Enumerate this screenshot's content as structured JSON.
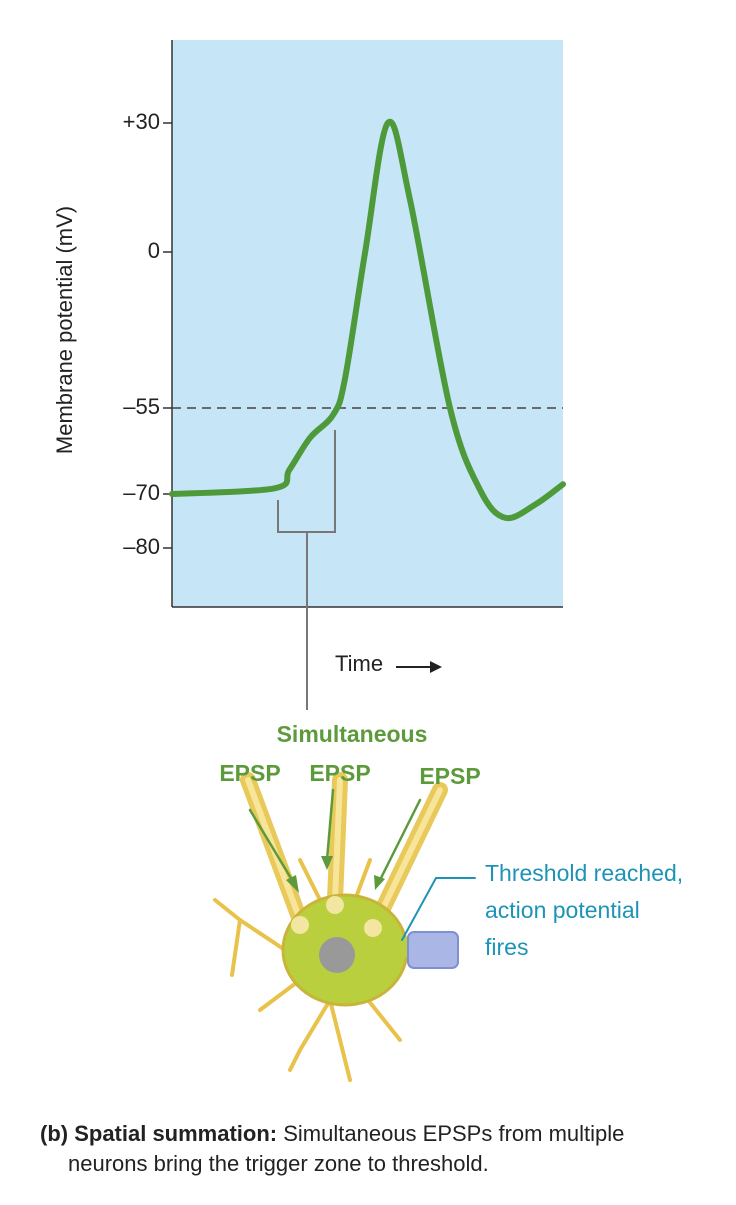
{
  "chart_data": {
    "type": "line",
    "ylabel": "Membrane potential (mV)",
    "xlabel": "Time",
    "x": [
      0,
      26.3,
      30,
      35.3,
      41.2,
      44.2,
      49.4,
      55.2,
      60.9,
      71.1,
      78.8,
      85.2,
      92.8,
      100
    ],
    "values": [
      -70,
      -69,
      -65.8,
      -60.2,
      -56.2,
      -45,
      0,
      30,
      12,
      -55,
      -69.3,
      -74.4,
      -72,
      -68.3
    ],
    "color": "#4e9a3a",
    "background": "#c6e6f7",
    "xlim": [
      0,
      100
    ],
    "ylim": [
      -91,
      49
    ],
    "yticks": [
      {
        "value": 30,
        "label": "+30"
      },
      0,
      {
        "value": -55,
        "label": "–55"
      },
      {
        "value": -70,
        "label": "–70"
      },
      {
        "value": -80,
        "label": "–80"
      }
    ],
    "threshold": -55
  },
  "labels": {
    "simultaneous": "Simultaneous",
    "epsp": [
      "EPSP",
      "EPSP",
      "EPSP"
    ],
    "threshold_note": [
      "Threshold reached,",
      "action potential",
      "fires"
    ],
    "caption": {
      "bold": "(b) Spatial summation:",
      "text": "Simultaneous EPSPs from multiple",
      "line2": "neurons bring the trigger zone to threshold."
    }
  }
}
